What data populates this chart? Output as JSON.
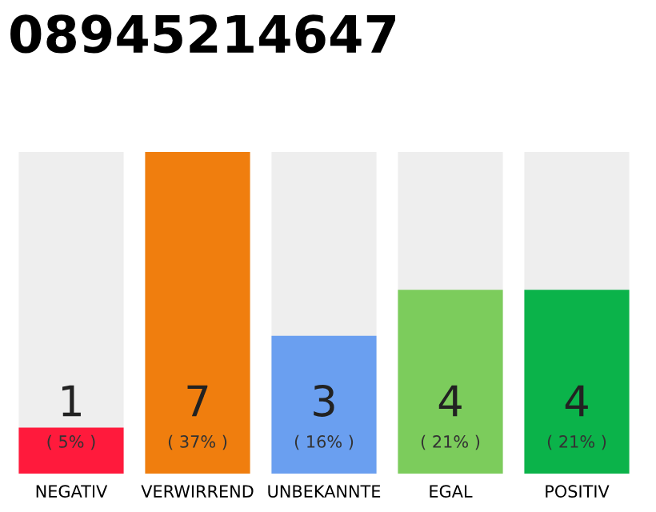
{
  "chart_data": {
    "type": "bar",
    "title": "08945214647",
    "categories": [
      "NEGATIV",
      "VERWIRREND",
      "UNBEKANNTE",
      "EGAL",
      "POSITIV"
    ],
    "values": [
      1,
      7,
      3,
      4,
      4
    ],
    "colors": [
      "#ff1a3c",
      "#f07e0e",
      "#6a9ff0",
      "#7ccc5c",
      "#0bb34a"
    ],
    "ylim": [
      0,
      7
    ],
    "tick_labels": "x",
    "data_labels": true,
    "grid": false,
    "legend": false,
    "annotations": [
      "( 5% )",
      "( 37% )",
      "( 16% )",
      "( 21% )",
      "( 21% )"
    ]
  }
}
